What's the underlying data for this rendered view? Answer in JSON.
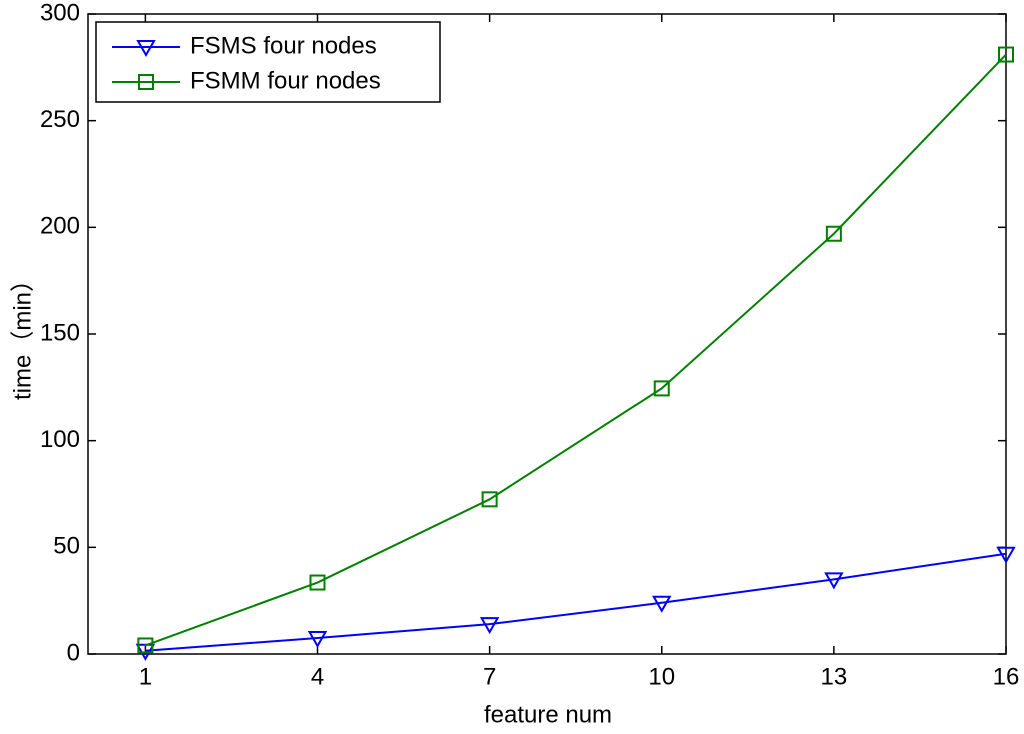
{
  "chart_data": {
    "type": "line",
    "xlabel": "feature num",
    "ylabel": "time（min）",
    "x": [
      1,
      4,
      7,
      10,
      13,
      16
    ],
    "series": [
      {
        "name": "FSMS four nodes",
        "color": "#0000ff",
        "marker": "triangle-down",
        "values": [
          1.5,
          7.5,
          14,
          24,
          35,
          47
        ]
      },
      {
        "name": "FSMM four nodes",
        "color": "#008000",
        "marker": "square",
        "values": [
          4,
          33.5,
          72.5,
          124.5,
          197,
          281
        ]
      }
    ],
    "xlim": [
      0,
      16
    ],
    "xticks": [
      1,
      4,
      7,
      10,
      13,
      16
    ],
    "ylim": [
      0,
      300
    ],
    "yticks": [
      0,
      50,
      100,
      150,
      200,
      250,
      300
    ],
    "grid": false,
    "legend": "upper left"
  }
}
